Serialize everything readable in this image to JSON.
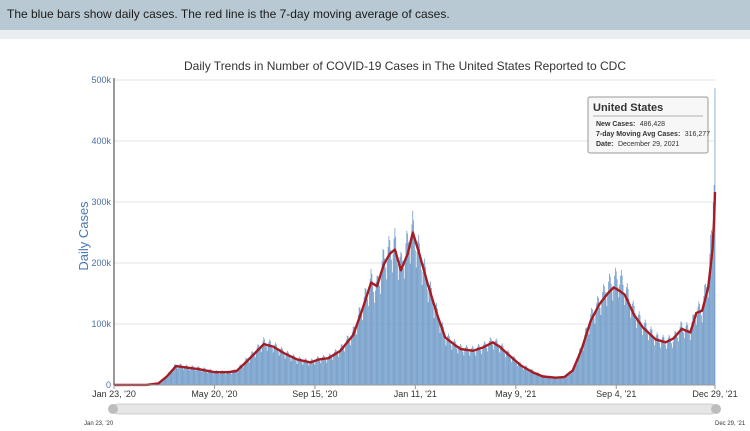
{
  "banner": {
    "text": "The blue bars show daily cases. The red line is the 7-day moving average of cases."
  },
  "chart_data": {
    "type": "bar",
    "title": "Daily Trends in Number of COVID-19 Cases in The United States Reported to CDC",
    "ylabel": "Daily Cases",
    "xlabel": "",
    "ylim": [
      0,
      500000
    ],
    "yticks": [
      {
        "value": 0,
        "label": "0"
      },
      {
        "value": 100000,
        "label": "100k"
      },
      {
        "value": 200000,
        "label": "200k"
      },
      {
        "value": 300000,
        "label": "300k"
      },
      {
        "value": 400000,
        "label": "400k"
      },
      {
        "value": 500000,
        "label": "500k"
      }
    ],
    "xlim": [
      "2020-01-23",
      "2021-12-29"
    ],
    "xticks": [
      {
        "date": "2020-01-23",
        "label": "Jan 23, '20"
      },
      {
        "date": "2020-05-20",
        "label": "May 20, '20"
      },
      {
        "date": "2020-09-15",
        "label": "Sep 15, '20"
      },
      {
        "date": "2021-01-11",
        "label": "Jan 11, '21"
      },
      {
        "date": "2021-05-09",
        "label": "May 9, '21"
      },
      {
        "date": "2021-09-04",
        "label": "Sep 4, '21"
      },
      {
        "date": "2021-12-29",
        "label": "Dec 29, '21"
      }
    ],
    "navigator": {
      "start_label": "Jan 23, '20",
      "end_label": "Dec 29, '21"
    },
    "series": [
      {
        "name": "New Cases",
        "kind": "bar",
        "color": "#6f9bc8",
        "anchors": [
          [
            "2020-01-23",
            0
          ],
          [
            "2020-03-01",
            200
          ],
          [
            "2020-03-15",
            3500
          ],
          [
            "2020-03-25",
            15000
          ],
          [
            "2020-04-05",
            33000
          ],
          [
            "2020-04-15",
            30000
          ],
          [
            "2020-05-01",
            28000
          ],
          [
            "2020-05-20",
            22000
          ],
          [
            "2020-06-05",
            21000
          ],
          [
            "2020-06-15",
            24000
          ],
          [
            "2020-06-25",
            38000
          ],
          [
            "2020-07-05",
            52000
          ],
          [
            "2020-07-17",
            70000
          ],
          [
            "2020-07-28",
            65000
          ],
          [
            "2020-08-10",
            53000
          ],
          [
            "2020-08-25",
            42000
          ],
          [
            "2020-09-10",
            38000
          ],
          [
            "2020-09-20",
            43000
          ],
          [
            "2020-10-01",
            45000
          ],
          [
            "2020-10-15",
            58000
          ],
          [
            "2020-10-30",
            85000
          ],
          [
            "2020-11-10",
            130000
          ],
          [
            "2020-11-20",
            170000
          ],
          [
            "2020-11-27",
            160000
          ],
          [
            "2020-12-05",
            205000
          ],
          [
            "2020-12-12",
            220000
          ],
          [
            "2020-12-18",
            230000
          ],
          [
            "2020-12-25",
            195000
          ],
          [
            "2021-01-02",
            230000
          ],
          [
            "2021-01-08",
            255000
          ],
          [
            "2021-01-15",
            220000
          ],
          [
            "2021-01-25",
            170000
          ],
          [
            "2021-02-05",
            120000
          ],
          [
            "2021-02-15",
            80000
          ],
          [
            "2021-02-25",
            68000
          ],
          [
            "2021-03-05",
            60000
          ],
          [
            "2021-03-20",
            57000
          ],
          [
            "2021-04-01",
            63000
          ],
          [
            "2021-04-12",
            72000
          ],
          [
            "2021-04-20",
            65000
          ],
          [
            "2021-05-01",
            50000
          ],
          [
            "2021-05-15",
            33000
          ],
          [
            "2021-05-30",
            22000
          ],
          [
            "2021-06-10",
            15000
          ],
          [
            "2021-06-25",
            12000
          ],
          [
            "2021-07-05",
            13000
          ],
          [
            "2021-07-15",
            25000
          ],
          [
            "2021-07-25",
            60000
          ],
          [
            "2021-08-05",
            110000
          ],
          [
            "2021-08-15",
            135000
          ],
          [
            "2021-08-25",
            160000
          ],
          [
            "2021-09-01",
            170000
          ],
          [
            "2021-09-07",
            175000
          ],
          [
            "2021-09-14",
            160000
          ],
          [
            "2021-09-25",
            120000
          ],
          [
            "2021-10-05",
            100000
          ],
          [
            "2021-10-20",
            78000
          ],
          [
            "2021-11-01",
            72000
          ],
          [
            "2021-11-10",
            75000
          ],
          [
            "2021-11-20",
            95000
          ],
          [
            "2021-11-30",
            90000
          ],
          [
            "2021-12-07",
            120000
          ],
          [
            "2021-12-14",
            125000
          ],
          [
            "2021-12-21",
            175000
          ],
          [
            "2021-12-26",
            250000
          ],
          [
            "2021-12-28",
            400000
          ],
          [
            "2021-12-29",
            486428
          ]
        ]
      },
      {
        "name": "7-day Moving Avg Cases",
        "kind": "line",
        "color": "#a61c24",
        "points": [
          [
            "2020-01-23",
            0
          ],
          [
            "2020-03-01",
            100
          ],
          [
            "2020-03-15",
            2500
          ],
          [
            "2020-03-25",
            14000
          ],
          [
            "2020-04-05",
            31000
          ],
          [
            "2020-04-15",
            29000
          ],
          [
            "2020-05-01",
            26000
          ],
          [
            "2020-05-20",
            21000
          ],
          [
            "2020-06-05",
            21000
          ],
          [
            "2020-06-15",
            23000
          ],
          [
            "2020-06-25",
            36000
          ],
          [
            "2020-07-05",
            50000
          ],
          [
            "2020-07-17",
            67000
          ],
          [
            "2020-07-28",
            63000
          ],
          [
            "2020-08-10",
            52000
          ],
          [
            "2020-08-25",
            42000
          ],
          [
            "2020-09-10",
            37000
          ],
          [
            "2020-09-20",
            42000
          ],
          [
            "2020-10-01",
            44000
          ],
          [
            "2020-10-15",
            56000
          ],
          [
            "2020-10-30",
            82000
          ],
          [
            "2020-11-10",
            125000
          ],
          [
            "2020-11-20",
            168000
          ],
          [
            "2020-11-27",
            162000
          ],
          [
            "2020-12-05",
            198000
          ],
          [
            "2020-12-12",
            215000
          ],
          [
            "2020-12-18",
            222000
          ],
          [
            "2020-12-25",
            188000
          ],
          [
            "2021-01-02",
            215000
          ],
          [
            "2021-01-08",
            250000
          ],
          [
            "2021-01-15",
            218000
          ],
          [
            "2021-01-25",
            168000
          ],
          [
            "2021-02-05",
            118000
          ],
          [
            "2021-02-15",
            78000
          ],
          [
            "2021-02-25",
            67000
          ],
          [
            "2021-03-05",
            59000
          ],
          [
            "2021-03-20",
            56000
          ],
          [
            "2021-04-01",
            62000
          ],
          [
            "2021-04-12",
            70000
          ],
          [
            "2021-04-20",
            63000
          ],
          [
            "2021-05-01",
            49000
          ],
          [
            "2021-05-15",
            32000
          ],
          [
            "2021-05-30",
            20000
          ],
          [
            "2021-06-10",
            14000
          ],
          [
            "2021-06-25",
            12000
          ],
          [
            "2021-07-05",
            13000
          ],
          [
            "2021-07-15",
            24000
          ],
          [
            "2021-07-25",
            57000
          ],
          [
            "2021-08-05",
            105000
          ],
          [
            "2021-08-15",
            132000
          ],
          [
            "2021-08-25",
            150000
          ],
          [
            "2021-09-01",
            160000
          ],
          [
            "2021-09-07",
            155000
          ],
          [
            "2021-09-14",
            148000
          ],
          [
            "2021-09-25",
            115000
          ],
          [
            "2021-10-05",
            95000
          ],
          [
            "2021-10-20",
            75000
          ],
          [
            "2021-11-01",
            70000
          ],
          [
            "2021-11-10",
            76000
          ],
          [
            "2021-11-20",
            92000
          ],
          [
            "2021-11-30",
            86000
          ],
          [
            "2021-12-07",
            118000
          ],
          [
            "2021-12-14",
            122000
          ],
          [
            "2021-12-21",
            160000
          ],
          [
            "2021-12-26",
            220000
          ],
          [
            "2021-12-28",
            270000
          ],
          [
            "2021-12-29",
            316277
          ]
        ]
      }
    ]
  },
  "tooltip": {
    "title": "United States",
    "rows": [
      {
        "key": "New Cases:",
        "value": "486,428"
      },
      {
        "key": "7-day Moving Avg Cases:",
        "value": "316,277"
      },
      {
        "key": "Date:",
        "value": "December 29, 2021"
      }
    ]
  }
}
